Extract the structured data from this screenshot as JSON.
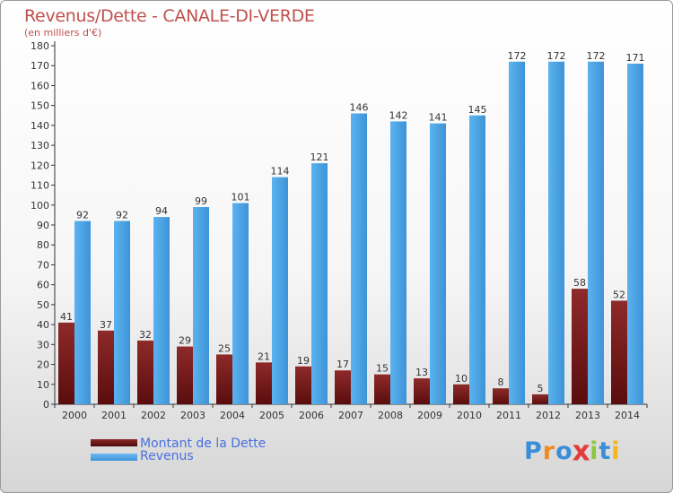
{
  "header": {
    "title": "Revenus/Dette - CANALE-DI-VERDE",
    "subtitle": "(en milliers d'€)"
  },
  "chart_data": {
    "type": "bar",
    "categories": [
      "2000",
      "2001",
      "2002",
      "2003",
      "2004",
      "2005",
      "2006",
      "2007",
      "2008",
      "2009",
      "2010",
      "2011",
      "2012",
      "2013",
      "2014"
    ],
    "series": [
      {
        "name": "Montant de la Dette",
        "color": "#7a1f1f",
        "values": [
          41,
          37,
          32,
          29,
          25,
          21,
          19,
          17,
          15,
          13,
          10,
          8,
          5,
          58,
          52
        ]
      },
      {
        "name": "Revenus",
        "color": "#4fa6e8",
        "values": [
          92,
          92,
          94,
          99,
          101,
          114,
          121,
          146,
          142,
          141,
          145,
          172,
          172,
          172,
          171
        ]
      }
    ],
    "ylim": [
      0,
      180
    ],
    "ytick_step": 10,
    "grid": false,
    "legend": "bottom-left"
  },
  "logo": {
    "text": "Proxiti",
    "letters": [
      "P",
      "r",
      "o",
      "x",
      "i",
      "t",
      "i"
    ],
    "colors": [
      "#3a8fd8",
      "#f08a24",
      "#3a8fd8",
      "#e23c3c",
      "#8ec63f",
      "#3a8fd8",
      "#f0b624"
    ]
  }
}
